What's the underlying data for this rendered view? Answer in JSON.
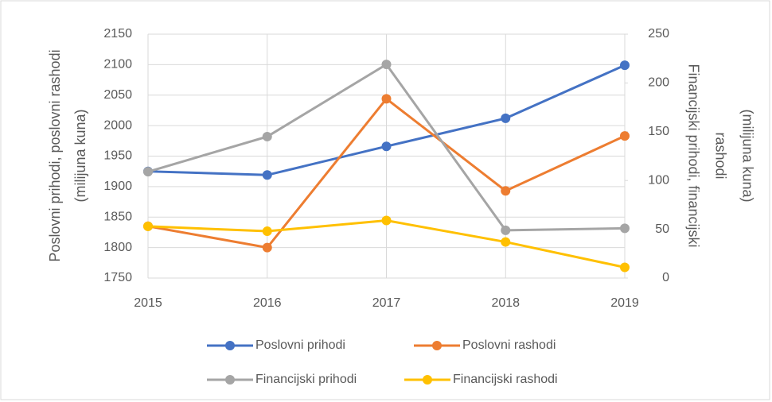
{
  "chart_data": {
    "type": "line",
    "categories": [
      "2015",
      "2016",
      "2017",
      "2018",
      "2019"
    ],
    "ylabel": [
      "Poslovni prihodi, poslovni rashodi",
      "(milijuna kuna)"
    ],
    "y2label": [
      "Financijski prihodi, financijski",
      "rashodi",
      "(milijuna kuna)"
    ],
    "ylim": [
      1750,
      2150
    ],
    "yticks": [
      1750,
      1800,
      1850,
      1900,
      1950,
      2000,
      2050,
      2100,
      2150
    ],
    "y2lim": [
      0,
      250
    ],
    "y2ticks": [
      0,
      50,
      100,
      150,
      200,
      250
    ],
    "grid": true,
    "legend": "bottom",
    "series": [
      {
        "name": "Poslovni prihodi",
        "color": "#4472c4",
        "values": [
          1925,
          1919,
          1966,
          2012,
          2099
        ]
      },
      {
        "name": "Poslovni rashodi",
        "color": "#ed7d31",
        "values": [
          1835,
          1800,
          2044,
          1893,
          1983
        ]
      },
      {
        "name": "Financijski prihodi",
        "color": "#a5a5a5",
        "axis": "y2",
        "values": [
          109,
          145,
          219,
          49,
          51
        ]
      },
      {
        "name": "Financijski rashodi",
        "color": "#ffc000",
        "axis": "y2",
        "values": [
          53,
          48,
          59,
          37,
          11
        ]
      }
    ]
  }
}
